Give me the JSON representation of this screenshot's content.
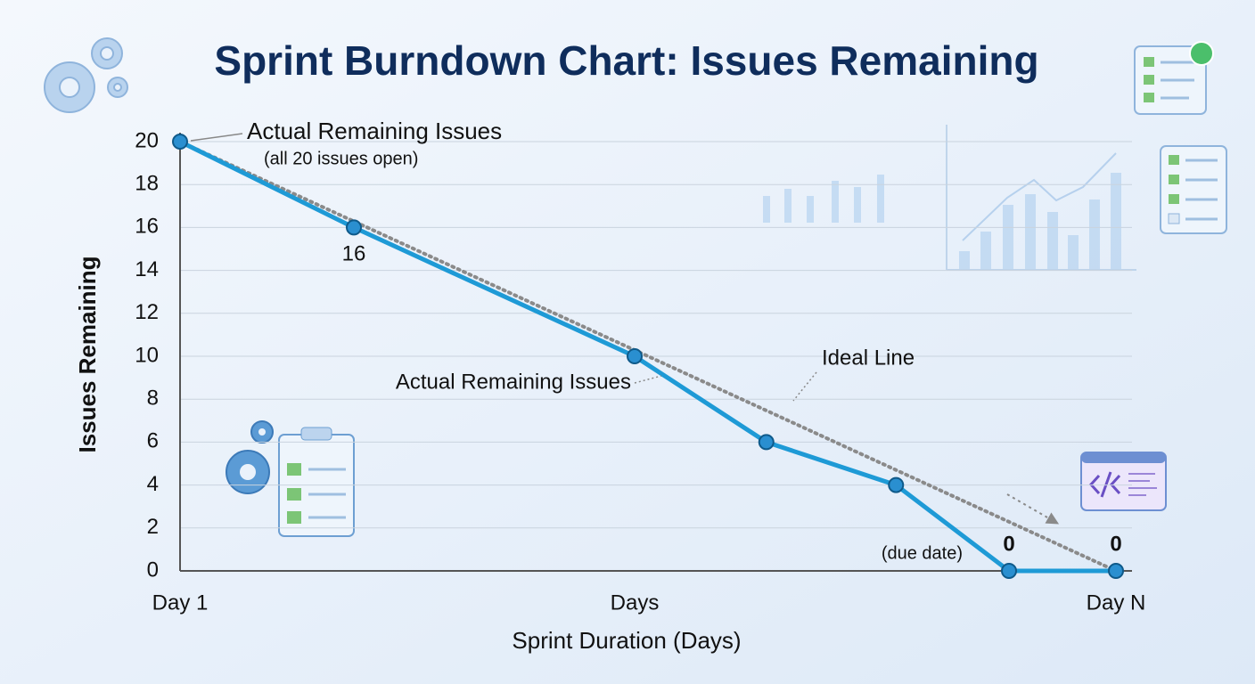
{
  "chart_data": {
    "type": "line",
    "title": "Sprint Burndown Chart: Issues Remaining",
    "x_label": "Sprint Duration (Days)",
    "y_label": "Issues Remaining",
    "xlim": [
      1,
      15
    ],
    "xticks": [
      {
        "value": 1,
        "label": "Day 1"
      },
      {
        "value": 7.8,
        "label": "Days"
      },
      {
        "value": 15,
        "label": "Day N"
      }
    ],
    "ylim": [
      0,
      20
    ],
    "yticks": [
      0,
      2,
      4,
      6,
      8,
      10,
      12,
      14,
      16,
      18,
      20
    ],
    "grid": true,
    "series": [
      {
        "name": "Actual Remaining Issues",
        "color": "#1e9ad6",
        "style": "solid",
        "x": [
          1,
          3.6,
          7.8,
          9.77,
          11.71,
          13.4,
          15
        ],
        "values": [
          20,
          16,
          10,
          6,
          4,
          0,
          0
        ]
      },
      {
        "name": "Ideal Line",
        "color": "#8a8a8a",
        "style": "dotted",
        "x": [
          1,
          15
        ],
        "values": [
          20,
          0
        ]
      }
    ],
    "annotations": [
      {
        "text": "Actual Remaining Issues"
      },
      {
        "text": "(all 20 issues open)"
      },
      {
        "text": "(due date)"
      }
    ]
  }
}
